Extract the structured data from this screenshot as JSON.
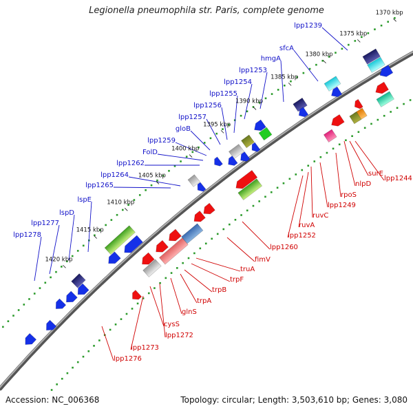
{
  "title": "Legionella pneumophila str. Paris, complete genome",
  "footer": {
    "accession": "Accession: NC_006368",
    "summary": "Topology: circular; Length: 3,503,610 bp; Genes: 3,080"
  },
  "colors": {
    "backbone": "#777777",
    "dots": "#2a9a2a",
    "plus_label": "#1010c8",
    "minus_label": "#d00000"
  },
  "ticks": [
    "1370 kbp",
    "1375 kbp",
    "1380 kbp",
    "1385 kbp",
    "1390 kbp",
    "1395 kbp",
    "1400 kbp",
    "1405 kbp",
    "1410 kbp",
    "1415 kbp",
    "1420 kbp"
  ],
  "plus_genes": [
    "lpp1239",
    "sfcA",
    "hmgA",
    "lpp1253",
    "lpp1254",
    "lpp1255",
    "lpp1256",
    "lpp1257",
    "gloB",
    "lpp1259",
    "FolD",
    "lpp1262",
    "lpp1264",
    "lpp1265",
    "lspE",
    "lspD",
    "lpp1277",
    "lpp1278"
  ],
  "minus_genes": [
    "lpp1244",
    "surE",
    "nlpD",
    "rpoS",
    "lpp1249",
    "ruvC",
    "ruvA",
    "lpp1252",
    "lpp1260",
    "fimV",
    "truA",
    "trpF",
    "trpB",
    "trpA",
    "glnS",
    "lpp1272",
    "cysS",
    "lpp1273",
    "lpp1276"
  ]
}
